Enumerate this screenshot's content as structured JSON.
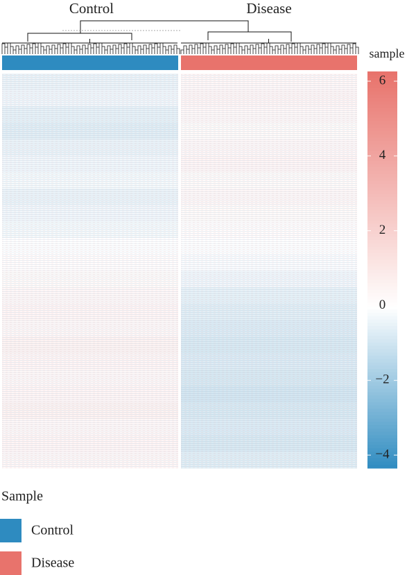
{
  "chart_data": {
    "type": "heatmap",
    "columns": [
      "Control",
      "Disease"
    ],
    "column_colors": [
      "#2e8bc0",
      "#e8736c"
    ],
    "z": [
      [
        -0.4,
        0.3
      ],
      [
        -0.3,
        0.4
      ],
      [
        -0.5,
        0.3
      ],
      [
        -0.6,
        0.2
      ],
      [
        -0.4,
        0.3
      ],
      [
        -0.3,
        0.4
      ],
      [
        -0.2,
        0.2
      ],
      [
        -0.4,
        0.3
      ],
      [
        -0.3,
        0.2
      ],
      [
        -0.2,
        0.1
      ],
      [
        0,
        0
      ],
      [
        0.1,
        -0.1
      ],
      [
        0.2,
        -0.3
      ],
      [
        0.3,
        -0.5
      ],
      [
        0.4,
        -0.6
      ],
      [
        0.3,
        -0.7
      ],
      [
        0.5,
        -0.8
      ],
      [
        0.4,
        -0.7
      ],
      [
        0.3,
        -0.8
      ],
      [
        0.4,
        -0.9
      ],
      [
        0.5,
        -0.8
      ],
      [
        0.3,
        -0.7
      ],
      [
        0.4,
        -0.8
      ],
      [
        0.3,
        -0.6
      ]
    ],
    "colorbar_title": "sample",
    "zlim": [
      -4.35,
      6.26
    ],
    "zticks": [
      {
        "value": -4,
        "label": "−4"
      },
      {
        "value": -2,
        "label": "−2"
      },
      0,
      2,
      4,
      6
    ],
    "colors": {
      "low": "#2e8bc0",
      "mid": "#ffffff",
      "high": "#e8736c"
    },
    "midpoint": 0,
    "legend_title": "Sample"
  }
}
